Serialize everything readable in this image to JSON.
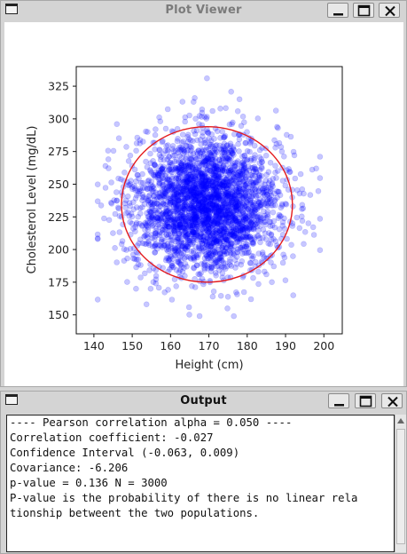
{
  "plot_window": {
    "title": "Plot Viewer",
    "icons": {
      "app": "window-icon",
      "minimize": "minimize-icon",
      "maximize": "maximize-icon",
      "close": "close-icon"
    }
  },
  "output_window": {
    "title": "Output",
    "icons": {
      "app": "window-icon",
      "minimize": "minimize-icon",
      "maximize": "maximize-icon",
      "close": "close-icon"
    },
    "lines": [
      "",
      "---- Pearson correlation alpha = 0.050 ----",
      "Correlation coefficient: -0.027",
      "Confidence Interval (-0.063, 0.009)",
      "Covariance: -6.206",
      "p-value = 0.136 N = 3000",
      "P-value is the probability of there is no linear rela",
      "tionship betweent the two populations."
    ]
  },
  "chart_data": {
    "type": "scatter",
    "xlabel": "Height (cm)",
    "ylabel": "Cholesterol Level (mg/dL)",
    "xlim": [
      135.4,
      204.8
    ],
    "ylim": [
      135.5,
      340
    ],
    "xticks": [
      140,
      150,
      160,
      170,
      180,
      190,
      200
    ],
    "yticks": [
      150,
      175,
      200,
      225,
      250,
      275,
      300,
      325
    ],
    "grid": false,
    "n": 3000,
    "point_color": "#0000ff",
    "point_alpha": 0.22,
    "x_mean": 169.5,
    "x_sd": 9.5,
    "y_mean": 234.5,
    "y_sd": 26,
    "ellipse": {
      "center": [
        169.5,
        234.5
      ],
      "x_radius": 22.3,
      "y_radius": 59.5,
      "color": "#e41a1c"
    },
    "outliers": [
      [
        169.5,
        331
      ],
      [
        176.5,
        149
      ],
      [
        154,
        290
      ],
      [
        166,
        313
      ],
      [
        181,
        162
      ],
      [
        143,
        264
      ],
      [
        188,
        293
      ],
      [
        198,
        262
      ],
      [
        192,
        165
      ],
      [
        151,
        170
      ],
      [
        146,
        296
      ],
      [
        178,
        315
      ],
      [
        171,
        164
      ],
      [
        185,
        181
      ],
      [
        158,
        186
      ],
      [
        190,
        235
      ]
    ]
  }
}
